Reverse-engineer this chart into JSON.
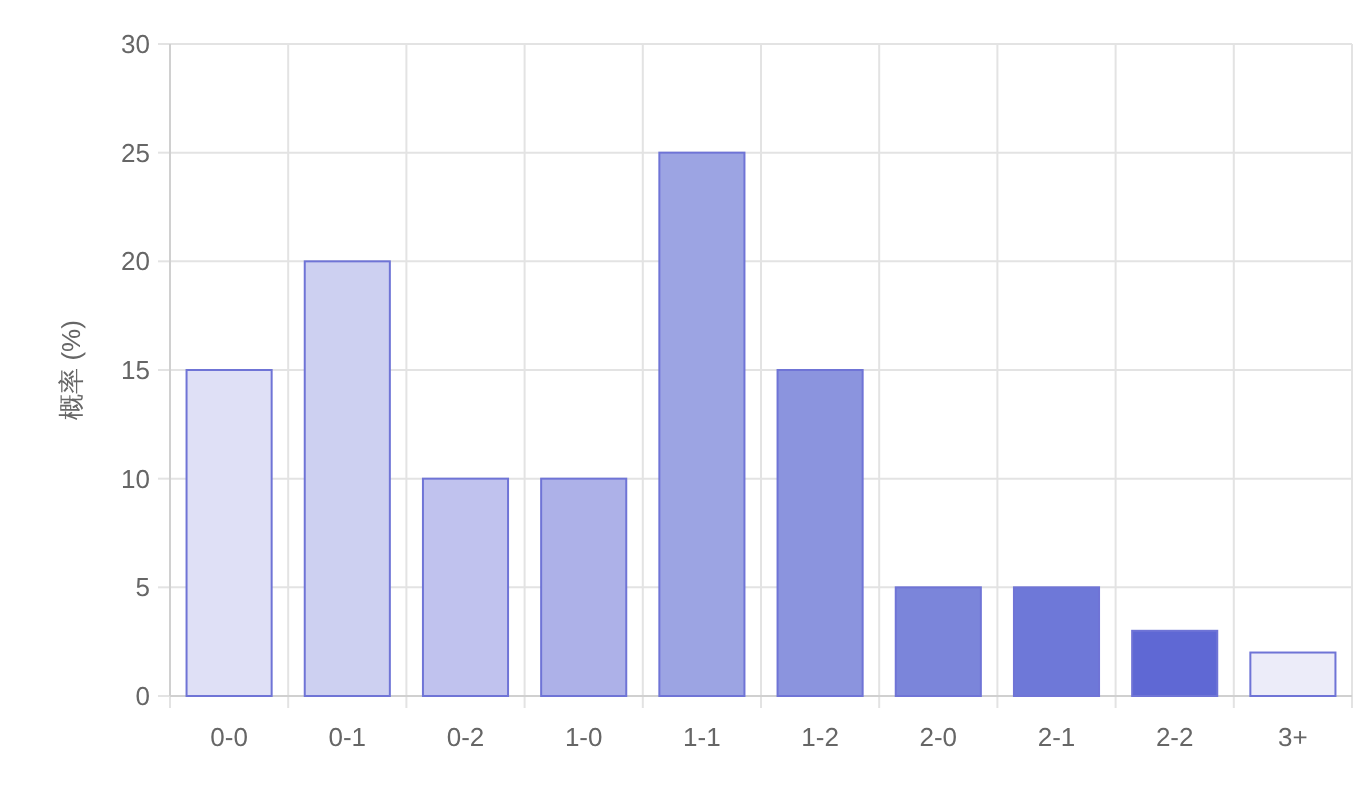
{
  "chart_data": {
    "type": "bar",
    "ylabel": "概率 (%)",
    "categories": [
      "0-0",
      "0-1",
      "0-2",
      "1-0",
      "1-1",
      "1-2",
      "2-0",
      "2-1",
      "2-2",
      "3+"
    ],
    "values": [
      15,
      20,
      10,
      10,
      25,
      15,
      5,
      5,
      3,
      2
    ],
    "colors": [
      "#dfe0f6",
      "#cdd0f1",
      "#c0c2ee",
      "#adb1e8",
      "#9ca4e3",
      "#8b94de",
      "#7b85da",
      "#6e78d8",
      "#5f68d4",
      "#ececf9"
    ],
    "ylim": [
      0,
      30
    ],
    "yticks": [
      0,
      5,
      10,
      15,
      20,
      25,
      30
    ],
    "grid": true
  }
}
